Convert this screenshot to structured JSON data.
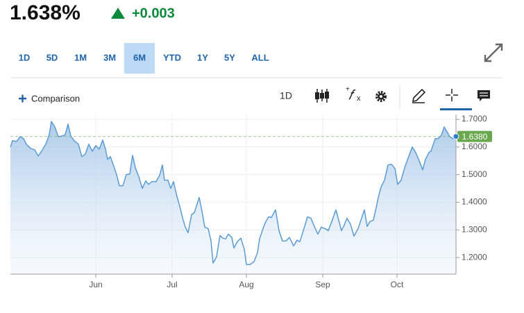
{
  "header": {
    "price": "1.638%",
    "change": "+0.003"
  },
  "ranges": {
    "items": [
      "1D",
      "5D",
      "1M",
      "3M",
      "6M",
      "YTD",
      "1Y",
      "5Y",
      "ALL"
    ],
    "active": 4
  },
  "toolbar": {
    "comparison": "Comparison",
    "interval": "1D"
  },
  "chart_data": {
    "type": "line",
    "color": "#5b9bd5",
    "x": [
      0,
      0.6,
      1.8,
      2.8,
      3.8,
      4.6,
      5.8,
      7.0,
      8.0,
      9.0,
      10.2,
      11.2,
      11.8,
      12.8,
      13.8,
      15.0,
      15.8,
      16.6,
      17.4,
      18.4,
      19.6,
      20.6,
      21.6,
      22.6,
      23.6,
      24.6,
      25.6,
      26.6,
      27.4,
      28.0,
      28.8,
      29.8,
      30.6,
      31.4,
      32.4,
      33.4,
      34.4,
      35.2,
      36.0,
      37.0,
      38.0,
      39.0,
      39.8,
      40.8,
      42.0,
      43.0,
      43.8,
      44.4,
      45.4,
      46.2,
      47.0,
      47.8,
      48.8,
      49.8,
      50.4,
      51.2,
      52.2,
      53.0,
      54.4,
      55.2,
      56.0,
      57.0,
      57.8,
      58.4,
      59.4,
      60.4,
      61.2,
      62.0,
      62.8,
      63.8,
      64.4,
      65.4,
      66.4,
      67.4,
      68.0,
      69.0,
      70.2,
      71.2,
      71.8,
      72.8,
      73.4,
      74.4,
      75.2,
      76.4,
      77.4,
      78.4,
      79.4,
      80.4,
      81.6,
      82.6,
      83.4,
      84.6,
      85.6,
      86.6,
      87.4,
      88.6,
      89.6,
      90.6,
      91.6,
      92.6,
      93.8,
      94.6,
      95.4,
      96.2,
      97.0,
      98.0,
      99.0,
      100.2,
      101.0,
      102.0,
      102.8,
      103.6,
      104.6,
      105.4,
      106.0,
      106.8,
      107.8,
      108.8,
      109.8,
      110.8,
      111.6,
      112.6,
      113.6,
      114.6,
      115.8,
      116.8,
      117.8,
      118.8,
      119.6,
      120.6,
      121.2,
      122.4,
      123.2,
      124.2,
      125.0,
      125.8,
      126.6,
      127.6,
      128.4
    ],
    "values": [
      1.6,
      1.6225,
      1.62,
      1.6375,
      1.63,
      1.61,
      1.595,
      1.59,
      1.5675,
      1.585,
      1.61,
      1.645,
      1.6925,
      1.6725,
      1.6375,
      1.64,
      1.645,
      1.6825,
      1.64,
      1.6225,
      1.61,
      1.565,
      1.575,
      1.61,
      1.585,
      1.605,
      1.5925,
      1.625,
      1.5925,
      1.555,
      1.565,
      1.53,
      1.5,
      1.46,
      1.46,
      1.5,
      1.5025,
      1.57,
      1.525,
      1.4925,
      1.45,
      1.4775,
      1.465,
      1.475,
      1.475,
      1.4975,
      1.535,
      1.48,
      1.48,
      1.45,
      1.475,
      1.43,
      1.385,
      1.335,
      1.31,
      1.29,
      1.355,
      1.3625,
      1.4175,
      1.3675,
      1.31,
      1.305,
      1.26,
      1.18,
      1.2025,
      1.28,
      1.27,
      1.2675,
      1.285,
      1.2725,
      1.235,
      1.2575,
      1.27,
      1.23,
      1.175,
      1.175,
      1.185,
      1.2175,
      1.2675,
      1.305,
      1.325,
      1.3475,
      1.345,
      1.3725,
      1.2975,
      1.26,
      1.26,
      1.2725,
      1.2425,
      1.2625,
      1.2575,
      1.305,
      1.3475,
      1.3425,
      1.3175,
      1.285,
      1.31,
      1.305,
      1.2975,
      1.33,
      1.3725,
      1.335,
      1.2975,
      1.3175,
      1.3425,
      1.32,
      1.2775,
      1.305,
      1.335,
      1.3725,
      1.3125,
      1.33,
      1.335,
      1.38,
      1.4175,
      1.455,
      1.48,
      1.535,
      1.5375,
      1.5225,
      1.465,
      1.48,
      1.525,
      1.56,
      1.6,
      1.58,
      1.55,
      1.5175,
      1.555,
      1.58,
      1.585,
      1.63,
      1.63,
      1.6425,
      1.6725,
      1.655,
      1.6375,
      1.63,
      1.638
    ],
    "current": {
      "value": 1.638,
      "label": "1.6380",
      "color": "#6aa84f"
    },
    "xlim": [
      0,
      128.4
    ],
    "xticks": [
      {
        "value": 24.6,
        "label": "Jun"
      },
      {
        "value": 46.6,
        "label": "Jul"
      },
      {
        "value": 68,
        "label": "Aug"
      },
      {
        "value": 90,
        "label": "Sep"
      },
      {
        "value": 111.4,
        "label": "Oct"
      }
    ],
    "ylim": [
      1.14,
      1.7175
    ],
    "yticks": [
      {
        "value": 1.2,
        "label": "1.2000"
      },
      {
        "value": 1.3,
        "label": "1.3000"
      },
      {
        "value": 1.4,
        "label": "1.4000"
      },
      {
        "value": 1.5,
        "label": "1.5000"
      },
      {
        "value": 1.6,
        "label": "1.6000"
      },
      {
        "value": 1.7,
        "label": "1.7000"
      }
    ],
    "grid": true
  }
}
